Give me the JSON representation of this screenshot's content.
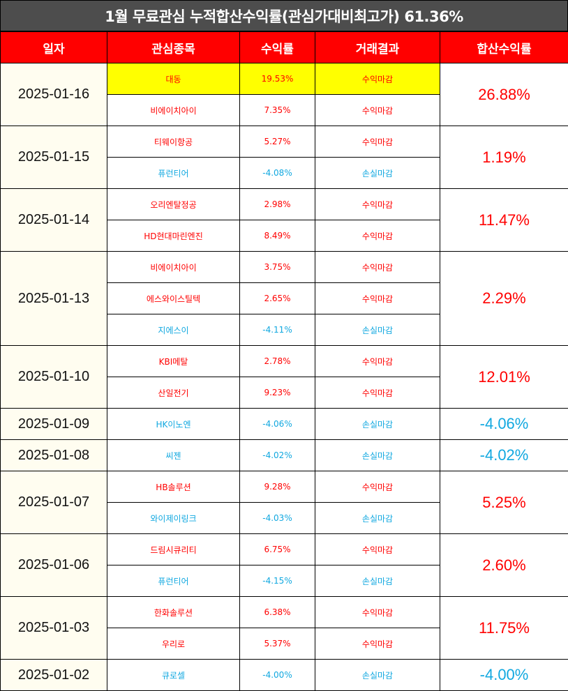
{
  "title": "1월 무료관심 누적합산수익률(관심가대비최고가) 61.36%",
  "headers": [
    "일자",
    "관심종목",
    "수익률",
    "거래결과",
    "합산수익률"
  ],
  "colors": {
    "positive": "#ff0000",
    "negative": "#11a8e0",
    "header_bg": "#ff0000",
    "title_bg": "#4d4d4d",
    "highlight": "#ffff00"
  },
  "groups": [
    {
      "date": "2025-01-16",
      "total": "26.88%",
      "total_sign": "pos",
      "rows": [
        {
          "stock": "대동",
          "rate": "19.53%",
          "result": "수익마감",
          "sign": "pos",
          "highlight": true
        },
        {
          "stock": "비에이치아이",
          "rate": "7.35%",
          "result": "수익마감",
          "sign": "pos"
        }
      ]
    },
    {
      "date": "2025-01-15",
      "total": "1.19%",
      "total_sign": "pos",
      "rows": [
        {
          "stock": "티웨이항공",
          "rate": "5.27%",
          "result": "수익마감",
          "sign": "pos"
        },
        {
          "stock": "퓨런티어",
          "rate": "-4.08%",
          "result": "손실마감",
          "sign": "neg"
        }
      ]
    },
    {
      "date": "2025-01-14",
      "total": "11.47%",
      "total_sign": "pos",
      "rows": [
        {
          "stock": "오리엔탈정공",
          "rate": "2.98%",
          "result": "수익마감",
          "sign": "pos"
        },
        {
          "stock": "HD현대마린엔진",
          "rate": "8.49%",
          "result": "수익마감",
          "sign": "pos"
        }
      ]
    },
    {
      "date": "2025-01-13",
      "total": "2.29%",
      "total_sign": "pos",
      "rows": [
        {
          "stock": "비에이치아이",
          "rate": "3.75%",
          "result": "수익마감",
          "sign": "pos"
        },
        {
          "stock": "에스와이스틸텍",
          "rate": "2.65%",
          "result": "수익마감",
          "sign": "pos"
        },
        {
          "stock": "지에스이",
          "rate": "-4.11%",
          "result": "손실마감",
          "sign": "neg"
        }
      ]
    },
    {
      "date": "2025-01-10",
      "total": "12.01%",
      "total_sign": "pos",
      "rows": [
        {
          "stock": "KBI메탈",
          "rate": "2.78%",
          "result": "수익마감",
          "sign": "pos"
        },
        {
          "stock": "산일전기",
          "rate": "9.23%",
          "result": "수익마감",
          "sign": "pos"
        }
      ]
    },
    {
      "date": "2025-01-09",
      "total": "-4.06%",
      "total_sign": "neg",
      "rows": [
        {
          "stock": "HK이노엔",
          "rate": "-4.06%",
          "result": "손실마감",
          "sign": "neg"
        }
      ]
    },
    {
      "date": "2025-01-08",
      "total": "-4.02%",
      "total_sign": "neg",
      "rows": [
        {
          "stock": "씨젠",
          "rate": "-4.02%",
          "result": "손실마감",
          "sign": "neg"
        }
      ]
    },
    {
      "date": "2025-01-07",
      "total": "5.25%",
      "total_sign": "pos",
      "rows": [
        {
          "stock": "HB솔루션",
          "rate": "9.28%",
          "result": "수익마감",
          "sign": "pos"
        },
        {
          "stock": "와이제이링크",
          "rate": "-4.03%",
          "result": "손실마감",
          "sign": "neg"
        }
      ]
    },
    {
      "date": "2025-01-06",
      "total": "2.60%",
      "total_sign": "pos",
      "rows": [
        {
          "stock": "드림시큐리티",
          "rate": "6.75%",
          "result": "수익마감",
          "sign": "pos"
        },
        {
          "stock": "퓨런티어",
          "rate": "-4.15%",
          "result": "손실마감",
          "sign": "neg"
        }
      ]
    },
    {
      "date": "2025-01-03",
      "total": "11.75%",
      "total_sign": "pos",
      "rows": [
        {
          "stock": "한화솔루션",
          "rate": "6.38%",
          "result": "수익마감",
          "sign": "pos"
        },
        {
          "stock": "우리로",
          "rate": "5.37%",
          "result": "수익마감",
          "sign": "pos"
        }
      ]
    },
    {
      "date": "2025-01-02",
      "total": "-4.00%",
      "total_sign": "neg",
      "rows": [
        {
          "stock": "큐로셀",
          "rate": "-4.00%",
          "result": "손실마감",
          "sign": "neg"
        }
      ]
    }
  ]
}
